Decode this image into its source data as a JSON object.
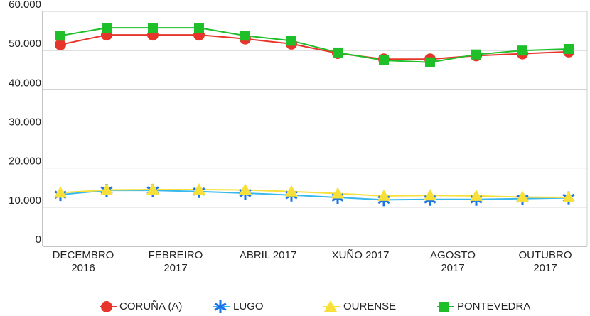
{
  "chart_data": {
    "type": "line",
    "categories": [
      "DECEMBRO\n2016",
      null,
      "FEBREIRO\n2017",
      null,
      "ABRIL 2017",
      null,
      "XUÑO 2017",
      null,
      "AGOSTO\n2017",
      null,
      "OUTUBRO\n2017",
      null
    ],
    "series": [
      {
        "name": "CORUÑA (A)",
        "color": "#e8352b",
        "marker": "circle",
        "values": [
          51500,
          54000,
          54000,
          54000,
          53000,
          51700,
          49300,
          47800,
          47800,
          48700,
          49200,
          49700
        ]
      },
      {
        "name": "LUGO",
        "color": "#1a73e8",
        "line_color": "#39b8f0",
        "marker": "star",
        "values": [
          13200,
          14300,
          14300,
          14000,
          13600,
          13100,
          12500,
          11900,
          12000,
          12000,
          12200,
          12400
        ]
      },
      {
        "name": "OURENSE",
        "color": "#f7e03a",
        "marker": "triangle",
        "values": [
          13700,
          14400,
          14500,
          14500,
          14400,
          14000,
          13500,
          12900,
          13000,
          12900,
          12600,
          12500
        ]
      },
      {
        "name": "PONTEVEDRA",
        "color": "#1fbf2a",
        "marker": "square",
        "values": [
          53800,
          55800,
          55800,
          55800,
          53800,
          52500,
          49500,
          47500,
          47000,
          49000,
          50000,
          50400
        ]
      }
    ],
    "ylim": [
      0,
      60000
    ],
    "yticks": [
      0,
      {
        "value": 10000,
        "label": "10.000"
      },
      {
        "value": 20000,
        "label": "20.000"
      },
      {
        "value": 30000,
        "label": "30.000"
      },
      {
        "value": 40000,
        "label": "40.000"
      },
      {
        "value": 50000,
        "label": "50.000"
      },
      {
        "value": 60000,
        "label": "60.000"
      }
    ],
    "grid": true,
    "legend": "bottom"
  }
}
